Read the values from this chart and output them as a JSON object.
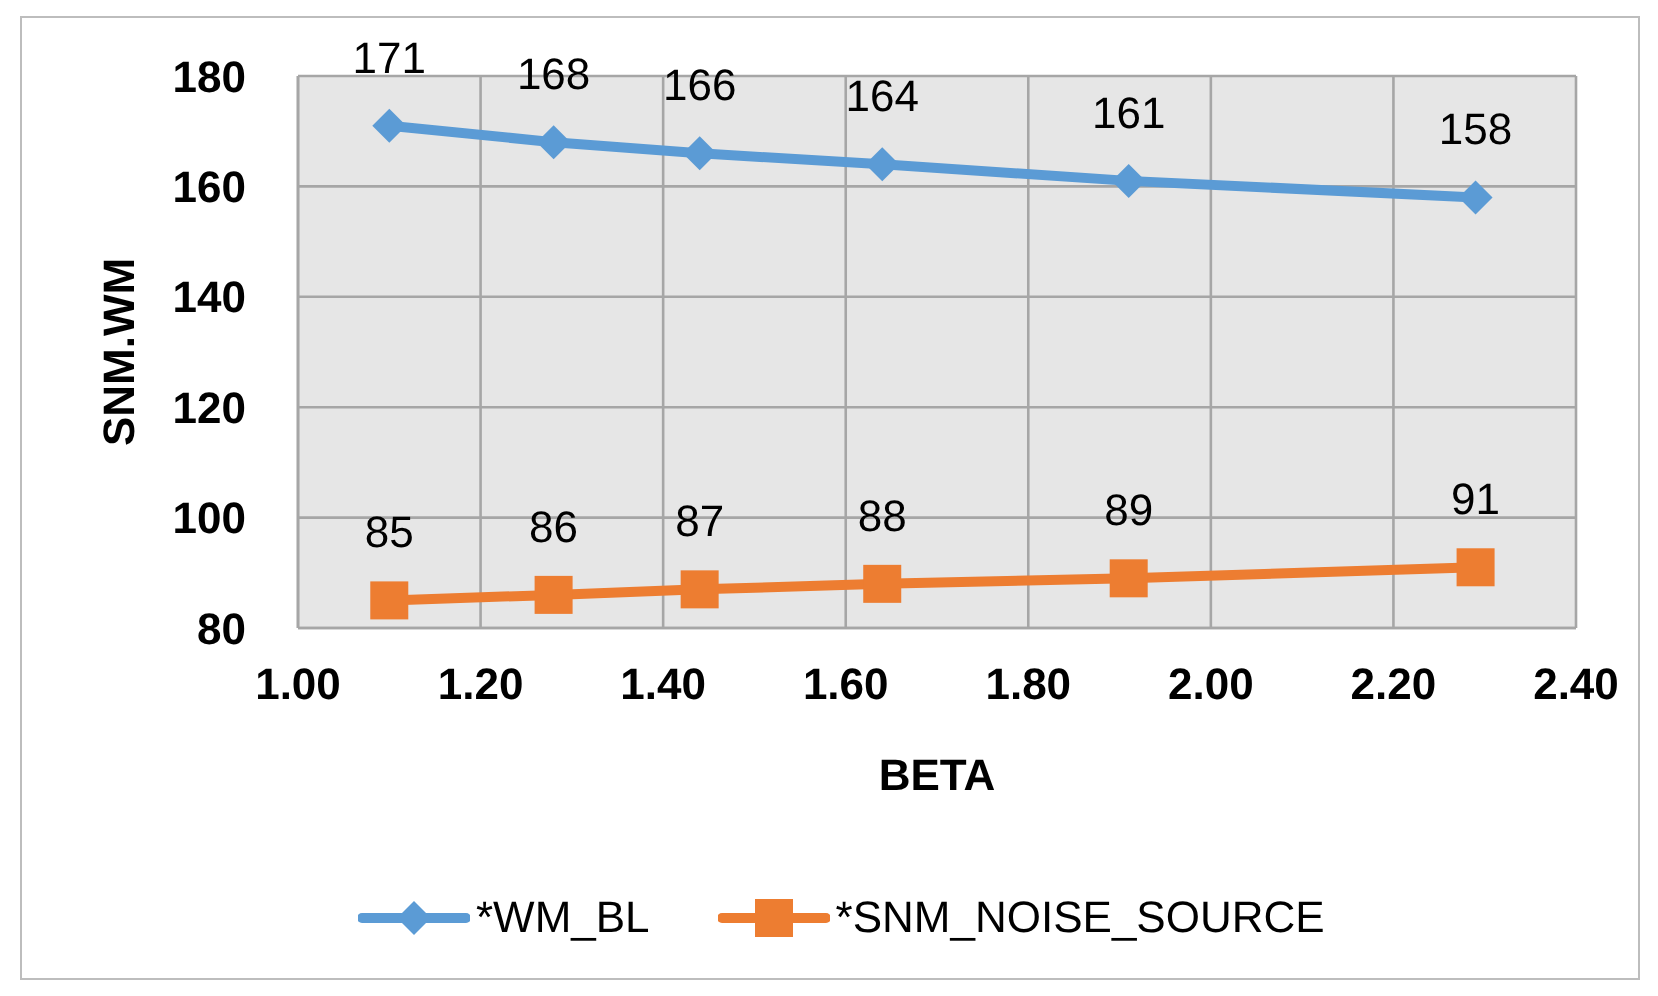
{
  "chart_data": {
    "type": "line",
    "xlabel": "BETA",
    "ylabel": "SNM.WM",
    "x": [
      1.1,
      1.28,
      1.44,
      1.64,
      1.91,
      2.29
    ],
    "series": [
      {
        "name": "*WM_BL",
        "color": "#5b9bd5",
        "marker": "diamond",
        "values": [
          171,
          168,
          166,
          164,
          161,
          158
        ]
      },
      {
        "name": "*SNM_NOISE_SOURCE",
        "color": "#ed7d31",
        "marker": "square",
        "values": [
          85,
          86,
          87,
          88,
          89,
          91
        ]
      }
    ],
    "xlim": [
      1,
      2.4
    ],
    "xticks": [
      {
        "value": 1,
        "label": "1.00"
      },
      {
        "value": 1.2,
        "label": "1.20"
      },
      {
        "value": 1.4,
        "label": "1.40"
      },
      {
        "value": 1.6,
        "label": "1.60"
      },
      {
        "value": 1.8,
        "label": "1.80"
      },
      {
        "value": 2,
        "label": "2.00"
      },
      {
        "value": 2.2,
        "label": "2.20"
      },
      {
        "value": 2.4,
        "label": "2.40"
      }
    ],
    "ylim": [
      80,
      180
    ],
    "yticks": [
      80,
      100,
      120,
      140,
      160,
      180
    ],
    "grid": true,
    "legend": "bottom",
    "data_labels": true
  }
}
